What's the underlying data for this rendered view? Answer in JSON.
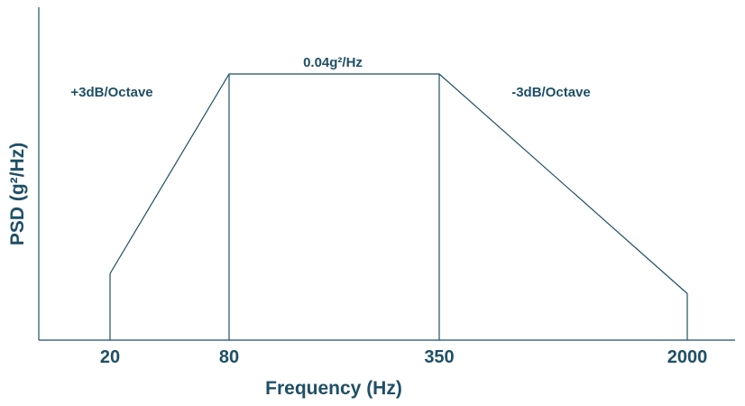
{
  "chart_data": {
    "type": "line",
    "title": "",
    "xlabel": "Frequency (Hz)",
    "ylabel": "PSD (g²/Hz)",
    "x_scale": "log",
    "x_ticks": [
      20,
      80,
      350,
      2000
    ],
    "x_tick_labels": [
      "20",
      "80",
      "350",
      "2000"
    ],
    "grid": false,
    "legend": "none",
    "series": [
      {
        "x": [
          20,
          80,
          350,
          2000
        ],
        "y": [
          0.01,
          0.04,
          0.04,
          0.007
        ]
      }
    ],
    "annotations": [
      {
        "text": "+3dB/Octave",
        "segment": "20-80"
      },
      {
        "text": "0.04g²/Hz",
        "segment": "80-350"
      },
      {
        "text": "-3dB/Octave",
        "segment": "350-2000"
      }
    ]
  },
  "colors": {
    "text": "#1f4f66",
    "line": "#1f4f66",
    "axis": "#1f4f66"
  }
}
